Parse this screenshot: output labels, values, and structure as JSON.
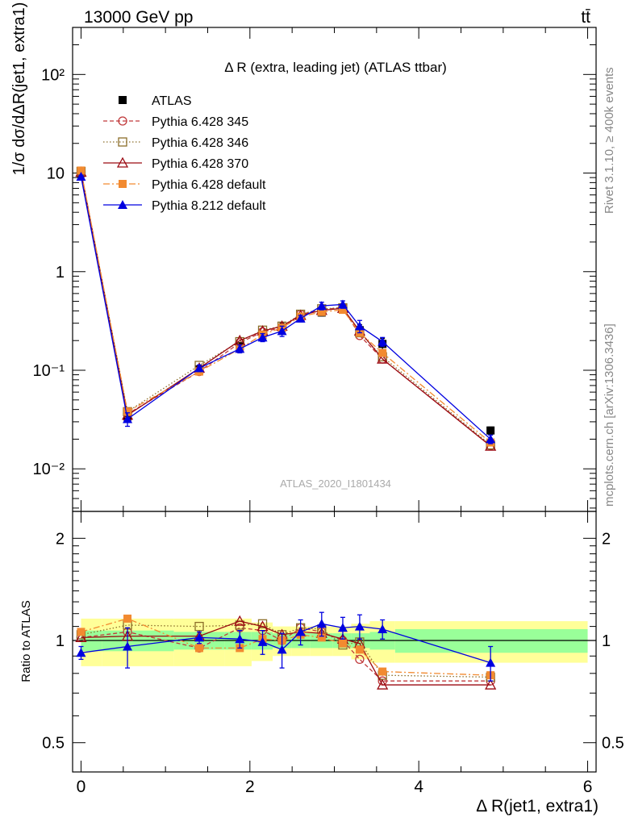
{
  "header": {
    "energy_label": "13000 GeV pp",
    "process_label": "tt̄",
    "right_label_top": "Rivet 3.1.10, ≥ 400k events",
    "right_label_bottom": "mcplots.cern.ch [arXiv:1306.3436]",
    "analysis_id": "ATLAS_2020_I1801434"
  },
  "chart_data": [
    {
      "type": "line",
      "panel": "main",
      "title": "Δ R (extra, leading jet) (ATLAS ttbar)",
      "ylabel": "1/σ dσ/dΔR(jet1, extra1)",
      "yscale": "log",
      "xlim": [
        -0.1,
        6.1
      ],
      "ylim": [
        0.0037,
        300
      ],
      "x_ticks": [
        0,
        2,
        4,
        6
      ],
      "y_ticks": [
        {
          "value": 0.01,
          "label": "10⁻²"
        },
        {
          "value": 0.1,
          "label": "10⁻¹"
        },
        {
          "value": 1,
          "label": "1"
        },
        {
          "value": 10,
          "label": "10"
        },
        {
          "value": 100,
          "label": "10²"
        }
      ],
      "x": [
        0.0,
        0.55,
        1.4,
        1.88,
        2.15,
        2.38,
        2.6,
        2.85,
        3.1,
        3.3,
        3.57,
        4.85
      ],
      "series": [
        {
          "name": "ATLAS",
          "color": "#000000",
          "marker": "square-filled",
          "dash": "none",
          "values": [
            10.0,
            0.034,
            0.102,
            0.175,
            0.228,
            0.27,
            0.34,
            0.385,
            0.42,
            0.255,
            0.185,
            0.0245
          ],
          "errors": [
            0.6,
            0.003,
            0.008,
            0.015,
            0.02,
            0.03,
            0.025,
            0.03,
            0.03,
            0.035,
            0.025,
            0.002
          ]
        },
        {
          "name": "Pythia 6.428 345",
          "color": "#c0393b",
          "marker": "circle-open",
          "dash": "5,3",
          "values": [
            10.2,
            0.036,
            0.097,
            0.19,
            0.245,
            0.27,
            0.37,
            0.41,
            0.435,
            0.225,
            0.13,
            0.0172
          ]
        },
        {
          "name": "Pythia 6.428 346",
          "color": "#8b6e2a",
          "marker": "square-open",
          "dash": "1.5,2.5",
          "values": [
            10.4,
            0.038,
            0.112,
            0.195,
            0.255,
            0.28,
            0.37,
            0.42,
            0.43,
            0.24,
            0.137,
            0.0175
          ]
        },
        {
          "name": "Pythia 6.428 370",
          "color": "#9b0a12",
          "marker": "triangle-open",
          "dash": "none",
          "values": [
            10.2,
            0.035,
            0.105,
            0.2,
            0.25,
            0.28,
            0.36,
            0.405,
            0.425,
            0.25,
            0.13,
            0.017
          ]
        },
        {
          "name": "Pythia 6.428 default",
          "color": "#f28a30",
          "marker": "square-filled",
          "dash": "8,3,2,3",
          "values": [
            10.6,
            0.038,
            0.097,
            0.165,
            0.23,
            0.27,
            0.35,
            0.39,
            0.41,
            0.24,
            0.15,
            0.0185
          ]
        },
        {
          "name": "Pythia 8.212 default",
          "color": "#0000e0",
          "marker": "triangle-filled",
          "dash": "none",
          "values": [
            9.2,
            0.032,
            0.105,
            0.165,
            0.215,
            0.25,
            0.335,
            0.45,
            0.465,
            0.28,
            0.195,
            0.02
          ],
          "errors": [
            0.3,
            0.005,
            0.008,
            0.015,
            0.02,
            0.03,
            0.025,
            0.04,
            0.04,
            0.04,
            0.02,
            0.002
          ]
        }
      ]
    },
    {
      "type": "line",
      "panel": "ratio",
      "ylabel": "Ratio to ATLAS",
      "yscale": "log",
      "xlabel": "Δ R(jet1, extra1)",
      "xlim": [
        -0.1,
        6.1
      ],
      "ylim": [
        0.41,
        2.4
      ],
      "x_ticks": [
        0,
        2,
        4,
        6
      ],
      "y_ticks": [
        {
          "value": 0.5,
          "label": "0.5"
        },
        {
          "value": 1,
          "label": "1"
        },
        {
          "value": 2,
          "label": "2"
        }
      ],
      "bins": [
        [
          0,
          0.25
        ],
        [
          0.25,
          1.1
        ],
        [
          1.1,
          1.7
        ],
        [
          1.7,
          2.02
        ],
        [
          2.02,
          2.27
        ],
        [
          2.27,
          2.49
        ],
        [
          2.49,
          2.71
        ],
        [
          2.71,
          2.98
        ],
        [
          2.98,
          3.2
        ],
        [
          3.2,
          3.42
        ],
        [
          3.42,
          3.72
        ],
        [
          3.72,
          6.0
        ]
      ],
      "band_stat": [
        0.07,
        0.07,
        0.06,
        0.06,
        0.06,
        0.05,
        0.05,
        0.05,
        0.05,
        0.05,
        0.06,
        0.08
      ],
      "band_total": [
        0.16,
        0.16,
        0.16,
        0.16,
        0.13,
        0.1,
        0.1,
        0.1,
        0.1,
        0.12,
        0.14,
        0.14
      ],
      "x": [
        0.0,
        0.55,
        1.4,
        1.88,
        2.15,
        2.38,
        2.6,
        2.85,
        3.1,
        3.3,
        3.57,
        4.85
      ],
      "series": [
        {
          "name": "Pythia 6.428 345",
          "color": "#c0393b",
          "marker": "circle-open",
          "dash": "5,3",
          "values": [
            1.02,
            1.06,
            0.95,
            1.09,
            1.07,
            1.0,
            1.09,
            1.06,
            1.0,
            0.88,
            0.76,
            0.76
          ]
        },
        {
          "name": "Pythia 6.428 346",
          "color": "#8b6e2a",
          "marker": "square-open",
          "dash": "1.5,2.5",
          "values": [
            1.04,
            1.11,
            1.1,
            1.11,
            1.12,
            1.04,
            1.09,
            1.08,
            0.97,
            0.99,
            0.79,
            0.78
          ]
        },
        {
          "name": "Pythia 6.428 370",
          "color": "#9b0a12",
          "marker": "triangle-open",
          "dash": "none",
          "values": [
            1.02,
            1.03,
            1.03,
            1.14,
            1.1,
            1.04,
            1.06,
            1.05,
            1.01,
            0.98,
            0.74,
            0.74
          ]
        },
        {
          "name": "Pythia 6.428 default",
          "color": "#f28a30",
          "marker": "square-filled",
          "dash": "8,3,2,3",
          "values": [
            1.06,
            1.16,
            0.95,
            0.95,
            1.01,
            1.0,
            1.04,
            1.02,
            0.98,
            0.94,
            0.81,
            0.79
          ]
        },
        {
          "name": "Pythia 8.212 default",
          "color": "#0000e0",
          "marker": "triangle-filled",
          "dash": "none",
          "values": [
            0.92,
            0.96,
            1.02,
            1.01,
            0.99,
            0.94,
            1.06,
            1.12,
            1.09,
            1.1,
            1.08,
            0.86
          ],
          "errors": [
            0.04,
            0.13,
            0.04,
            0.06,
            0.08,
            0.11,
            0.09,
            0.09,
            0.08,
            0.09,
            0.07,
            0.1
          ]
        }
      ]
    }
  ]
}
